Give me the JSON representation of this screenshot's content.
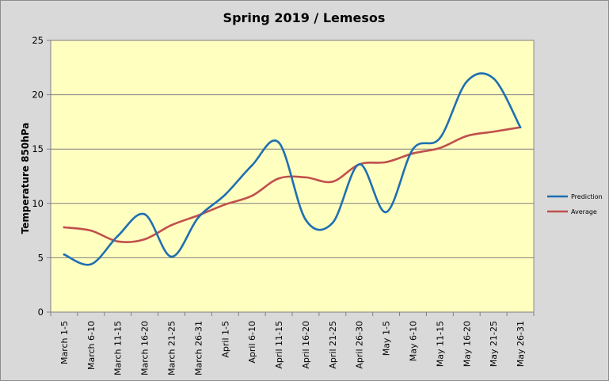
{
  "chart_data": {
    "type": "line",
    "title": "Spring 2019 / Lemesos",
    "ylabel": "Temperature 850hPa",
    "xlabel": "",
    "ylim": [
      0,
      25
    ],
    "yticks": [
      0,
      5,
      10,
      15,
      20,
      25
    ],
    "grid": "horizontal",
    "legend_position": "right",
    "background_colors": {
      "plot": "#ffffc0",
      "frame": "#d9d9d9"
    },
    "categories": [
      "March 1-5",
      "March 6-10",
      "March 11-15",
      "March 16-20",
      "March 21-25",
      "March 26-31",
      "April 1-5",
      "April 6-10",
      "April 11-15",
      "April 16-20",
      "April 21-25",
      "April 26-30",
      "May 1-5",
      "May 6-10",
      "May 11-15",
      "May 16-20",
      "May 21-25",
      "May 26-31"
    ],
    "series": [
      {
        "name": "Prediction",
        "color": "#1f6fb2",
        "values": [
          5.3,
          4.4,
          7.0,
          9.0,
          5.1,
          8.7,
          10.8,
          13.5,
          15.6,
          8.5,
          8.2,
          13.6,
          9.2,
          15.0,
          16.0,
          21.2,
          21.5,
          17.0
        ]
      },
      {
        "name": "Average",
        "color": "#c0504d",
        "values": [
          7.8,
          7.5,
          6.5,
          6.7,
          8.0,
          8.9,
          9.9,
          10.7,
          12.3,
          12.4,
          12.0,
          13.6,
          13.8,
          14.6,
          15.1,
          16.2,
          16.6,
          17.0
        ]
      }
    ]
  }
}
